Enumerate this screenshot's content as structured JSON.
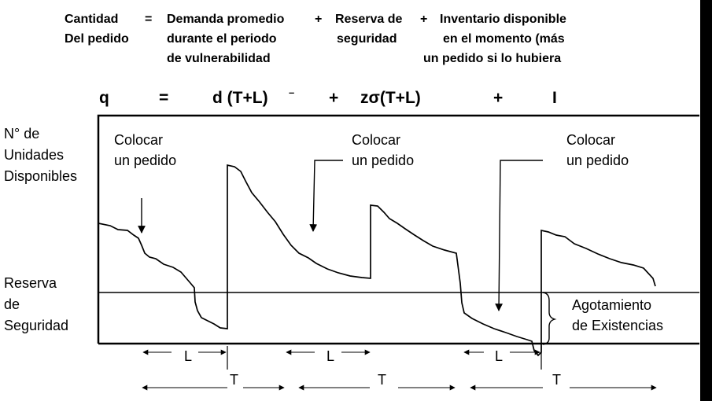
{
  "header": {
    "col1": [
      "Cantidad",
      "Del pedido"
    ],
    "eq_sign": "=",
    "col2": [
      "Demanda promedio",
      "durante el periodo",
      "de vulnerabilidad"
    ],
    "plus1": "+",
    "col3": [
      "Reserva de",
      "seguridad"
    ],
    "plus2": "+",
    "col4": [
      "Inventario disponible",
      "en el momento (más",
      "un  pedido si lo hubiera"
    ]
  },
  "formula": {
    "q": "q",
    "eq": "=",
    "demand": "d (T+L)",
    "demand_sup": "–",
    "plus1": "+",
    "safety": "zσ(T+L)",
    "plus2": "+",
    "inventory": "I"
  },
  "diagram": {
    "y_label": [
      "N° de",
      "Unidades",
      "Disponibles"
    ],
    "safety_label": [
      "Reserva",
      "de",
      "Seguridad"
    ],
    "order_callouts": [
      [
        "Colocar",
        "un pedido"
      ],
      [
        "Colocar",
        "un pedido"
      ],
      [
        "Colocar",
        "un pedido"
      ]
    ],
    "stockout_label": [
      "Agotamiento",
      "de Existencias"
    ],
    "lead_time_label": "L",
    "period_label": "T"
  }
}
